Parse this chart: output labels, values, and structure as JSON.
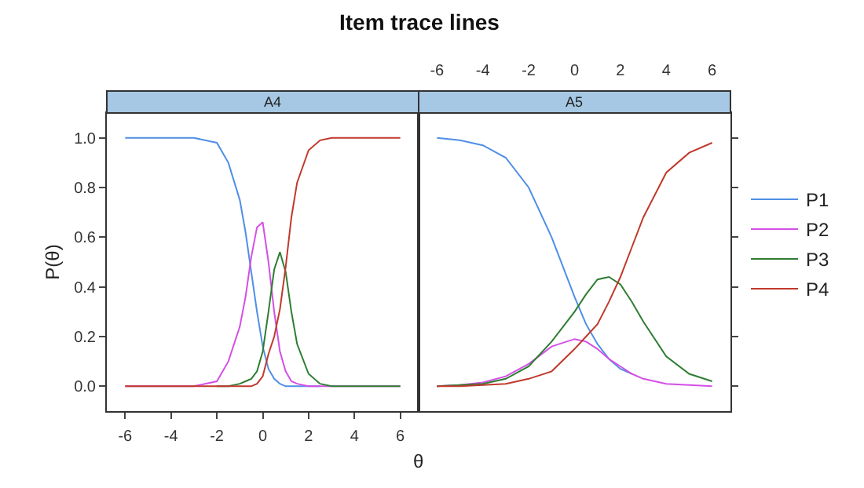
{
  "chart_data": [
    {
      "type": "line",
      "title": "Item trace lines",
      "subtitle": "A4",
      "xlabel": "θ",
      "ylabel": "P(θ)",
      "xlim": [
        -6.8,
        6.8
      ],
      "xticks": [
        -6,
        -4,
        -2,
        0,
        2,
        4,
        6
      ],
      "ylim": [
        -0.1,
        1.1
      ],
      "yticks": [
        {
          "value": 0,
          "label": "0.0"
        },
        0.2,
        0.4,
        0.6,
        0.8,
        {
          "value": 1,
          "label": "1.0"
        }
      ],
      "legend": "right",
      "x": [
        -6,
        -3,
        -2,
        -1.5,
        -1,
        -0.75,
        -0.5,
        -0.25,
        0,
        0.25,
        0.5,
        0.75,
        1,
        1.25,
        1.5,
        2,
        2.5,
        3,
        6
      ],
      "series": [
        {
          "name": "P1",
          "color": "#4f8fe6",
          "values": [
            1,
            1,
            0.98,
            0.9,
            0.75,
            0.62,
            0.46,
            0.3,
            0.16,
            0.07,
            0.03,
            0.01,
            0,
            0,
            0,
            0,
            0,
            null,
            null
          ]
        },
        {
          "name": "P2",
          "color": "#d44fe6",
          "values": [
            0,
            0,
            0.02,
            0.1,
            0.24,
            0.36,
            0.52,
            0.64,
            0.66,
            0.5,
            0.3,
            0.14,
            0.06,
            0.02,
            0.01,
            0,
            0,
            0,
            0
          ]
        },
        {
          "name": "P3",
          "color": "#2e7d32",
          "values": [
            null,
            null,
            0,
            0,
            0.01,
            0.02,
            0.03,
            0.06,
            0.14,
            0.3,
            0.47,
            0.54,
            0.46,
            0.3,
            0.17,
            0.05,
            0.01,
            0,
            0
          ]
        },
        {
          "name": "P4",
          "color": "#c0392b",
          "values": [
            0,
            0,
            0,
            0,
            0,
            0,
            0,
            0.01,
            0.04,
            0.13,
            0.2,
            0.31,
            0.48,
            0.68,
            0.82,
            0.95,
            0.99,
            1,
            1
          ]
        }
      ]
    },
    {
      "type": "line",
      "subtitle": "A5",
      "xlim": [
        -6.8,
        6.8
      ],
      "xticks": [
        -6,
        -4,
        -2,
        0,
        2,
        4,
        6
      ],
      "ylim": [
        -0.1,
        1.1
      ],
      "yticks": [
        0,
        0.2,
        0.4,
        0.6,
        0.8,
        1
      ],
      "tick_labels": "x",
      "x": [
        -6,
        -5,
        -4,
        -3,
        -2,
        -1,
        0,
        0.5,
        1,
        1.5,
        2,
        2.5,
        3,
        4,
        5,
        6
      ],
      "series": [
        {
          "color": "#4f8fe6",
          "values": [
            1,
            0.99,
            0.97,
            0.92,
            0.8,
            0.6,
            0.36,
            0.25,
            0.17,
            0.11,
            0.07,
            0.05,
            null,
            null,
            null,
            null
          ]
        },
        {
          "color": "#d44fe6",
          "values": [
            0,
            0.005,
            0.015,
            0.04,
            0.09,
            0.16,
            0.19,
            0.18,
            0.15,
            0.11,
            0.08,
            0.05,
            0.03,
            0.01,
            0.005,
            0
          ]
        },
        {
          "color": "#2e7d32",
          "values": [
            0,
            0.005,
            0.01,
            0.03,
            0.08,
            0.18,
            0.3,
            0.37,
            0.43,
            0.44,
            0.41,
            0.34,
            0.26,
            0.12,
            0.05,
            0.02
          ]
        },
        {
          "color": "#c0392b",
          "values": [
            0,
            0,
            0.005,
            0.01,
            0.03,
            0.06,
            0.15,
            0.2,
            0.25,
            0.34,
            0.44,
            0.56,
            0.68,
            0.86,
            0.94,
            0.98
          ]
        }
      ]
    }
  ]
}
